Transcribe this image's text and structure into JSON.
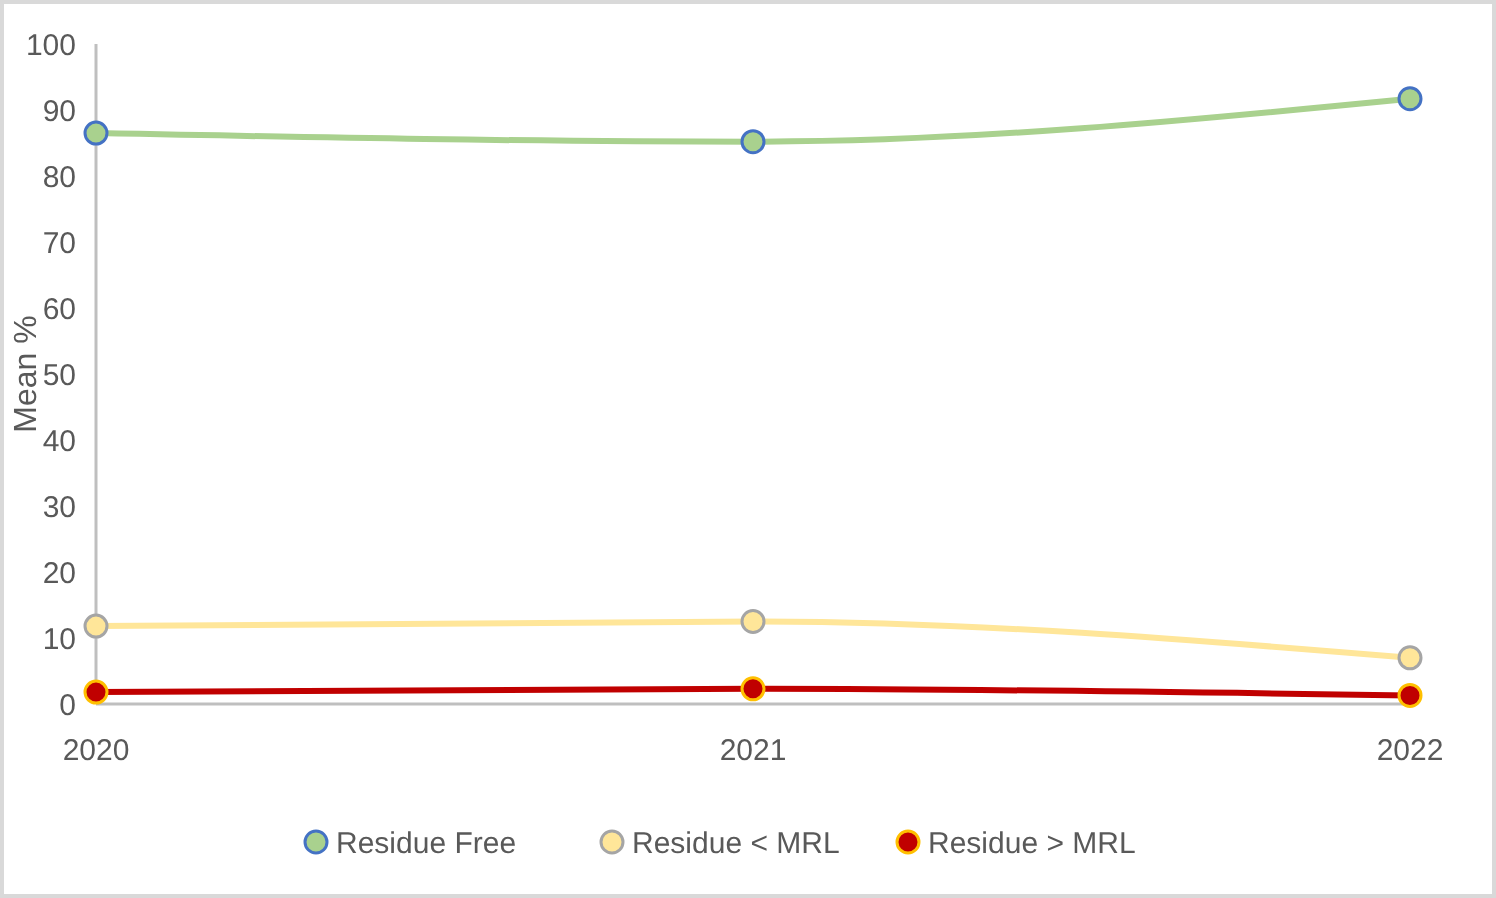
{
  "chart_data": {
    "type": "line",
    "ylabel": "Mean %",
    "categories": [
      "2020",
      "2021",
      "2022"
    ],
    "series": [
      {
        "name": "Residue Free",
        "color": "#a9d18e",
        "values": [
          86.5,
          85.2,
          91.7
        ]
      },
      {
        "name": "Residue < MRL",
        "color": "#ffe699",
        "values": [
          11.8,
          12.5,
          7.0
        ]
      },
      {
        "name": "Residue > MRL",
        "color": "#c00000",
        "values": [
          1.8,
          2.3,
          1.3
        ]
      }
    ],
    "ylim": [
      0,
      100
    ],
    "yticks": [
      0,
      10,
      20,
      30,
      40,
      50,
      60,
      70,
      80,
      90,
      100
    ],
    "grid": false,
    "legend": "bottom",
    "marker": "circle",
    "line_style": "solid"
  }
}
